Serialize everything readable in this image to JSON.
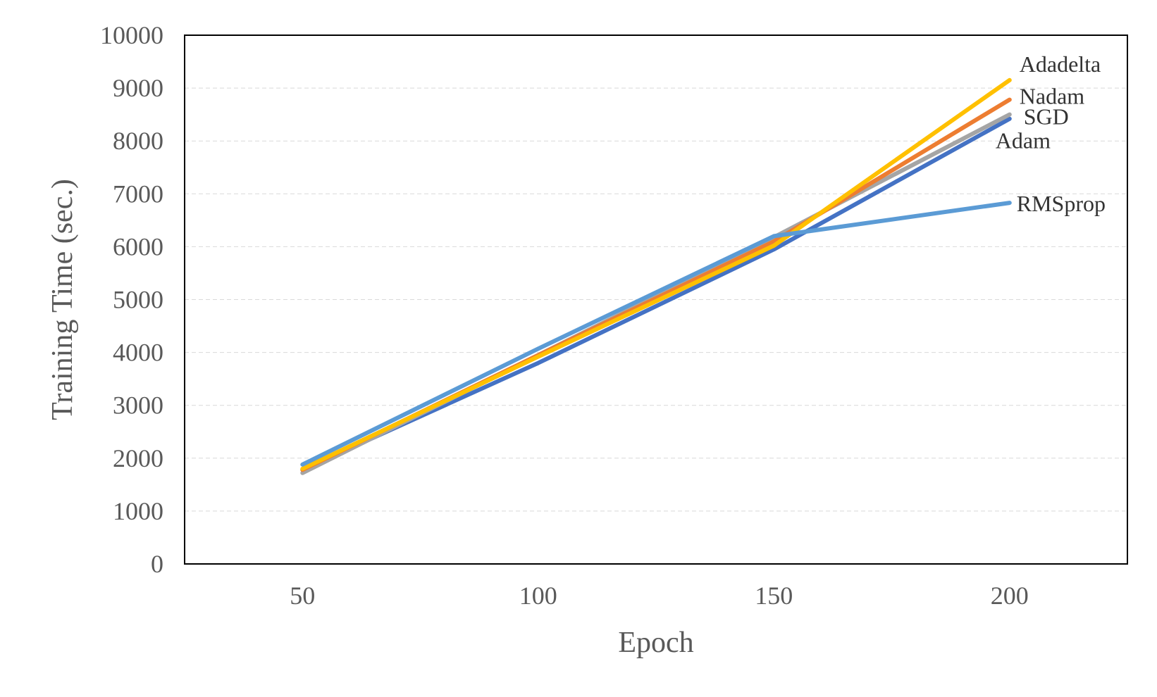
{
  "chart_data": {
    "type": "line",
    "title": "",
    "xlabel": "Epoch",
    "ylabel": "Training Time (sec.)",
    "x": [
      50,
      100,
      150,
      200
    ],
    "x_tick_labels": [
      "50",
      "100",
      "150",
      "200"
    ],
    "xlim": [
      25,
      225
    ],
    "ylim": [
      0,
      10000
    ],
    "y_ticks": [
      0,
      1000,
      2000,
      3000,
      4000,
      5000,
      6000,
      7000,
      8000,
      9000,
      10000
    ],
    "y_tick_labels": [
      "0",
      "1000",
      "2000",
      "3000",
      "4000",
      "5000",
      "6000",
      "7000",
      "8000",
      "9000",
      "10000"
    ],
    "grid": true,
    "legend": "labels at line ends",
    "series": [
      {
        "name": "Adam",
        "values": [
          1780,
          3800,
          5950,
          8420
        ],
        "color": "#4472C4"
      },
      {
        "name": "SGD",
        "values": [
          1720,
          3950,
          6180,
          8500
        ],
        "color": "#A5A5A5"
      },
      {
        "name": "Nadam",
        "values": [
          1780,
          3950,
          6100,
          8780
        ],
        "color": "#ED7D31"
      },
      {
        "name": "Adadelta",
        "values": [
          1800,
          3920,
          6020,
          9150
        ],
        "color": "#FFC000"
      },
      {
        "name": "RMSprop",
        "values": [
          1880,
          4070,
          6200,
          6830
        ],
        "color": "#5B9BD5"
      }
    ]
  }
}
